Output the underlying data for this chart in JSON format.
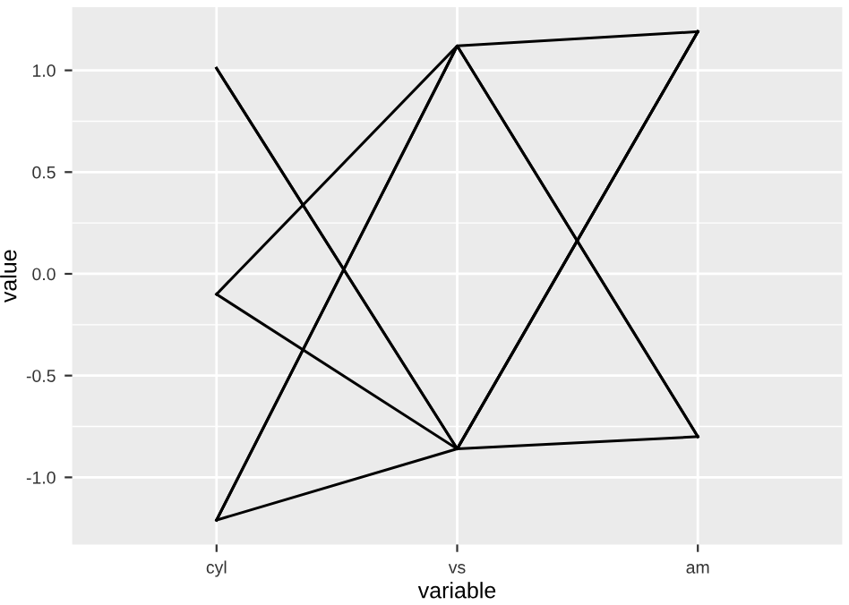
{
  "chart_data": {
    "type": "line",
    "xlabel": "variable",
    "ylabel": "value",
    "categories": [
      "cyl",
      "vs",
      "am"
    ],
    "series": [
      {
        "color": "#000000",
        "values": [
          1.01,
          -0.86,
          -0.8
        ]
      },
      {
        "color": "#000000",
        "values": [
          1.01,
          -0.86,
          1.19
        ]
      },
      {
        "color": "#000000",
        "values": [
          -0.1,
          1.12,
          -0.8
        ]
      },
      {
        "color": "#000000",
        "values": [
          -0.1,
          -0.86,
          1.19
        ]
      },
      {
        "color": "#000000",
        "values": [
          -1.21,
          1.12,
          1.19
        ]
      },
      {
        "color": "#000000",
        "values": [
          -1.21,
          1.12,
          -0.8
        ]
      },
      {
        "color": "#000000",
        "values": [
          -1.21,
          -0.86,
          1.19
        ]
      }
    ],
    "ylim": [
      -1.33,
      1.31
    ],
    "yticks": [
      {
        "value": 1.0,
        "label": "1.0"
      },
      {
        "value": 0.5,
        "label": "0.5"
      },
      {
        "value": 0.0,
        "label": "0.0"
      },
      {
        "value": -0.5,
        "label": "-0.5"
      },
      {
        "value": -1.0,
        "label": "-1.0"
      }
    ],
    "grid": true,
    "marker": "none",
    "line_style": "solid"
  }
}
